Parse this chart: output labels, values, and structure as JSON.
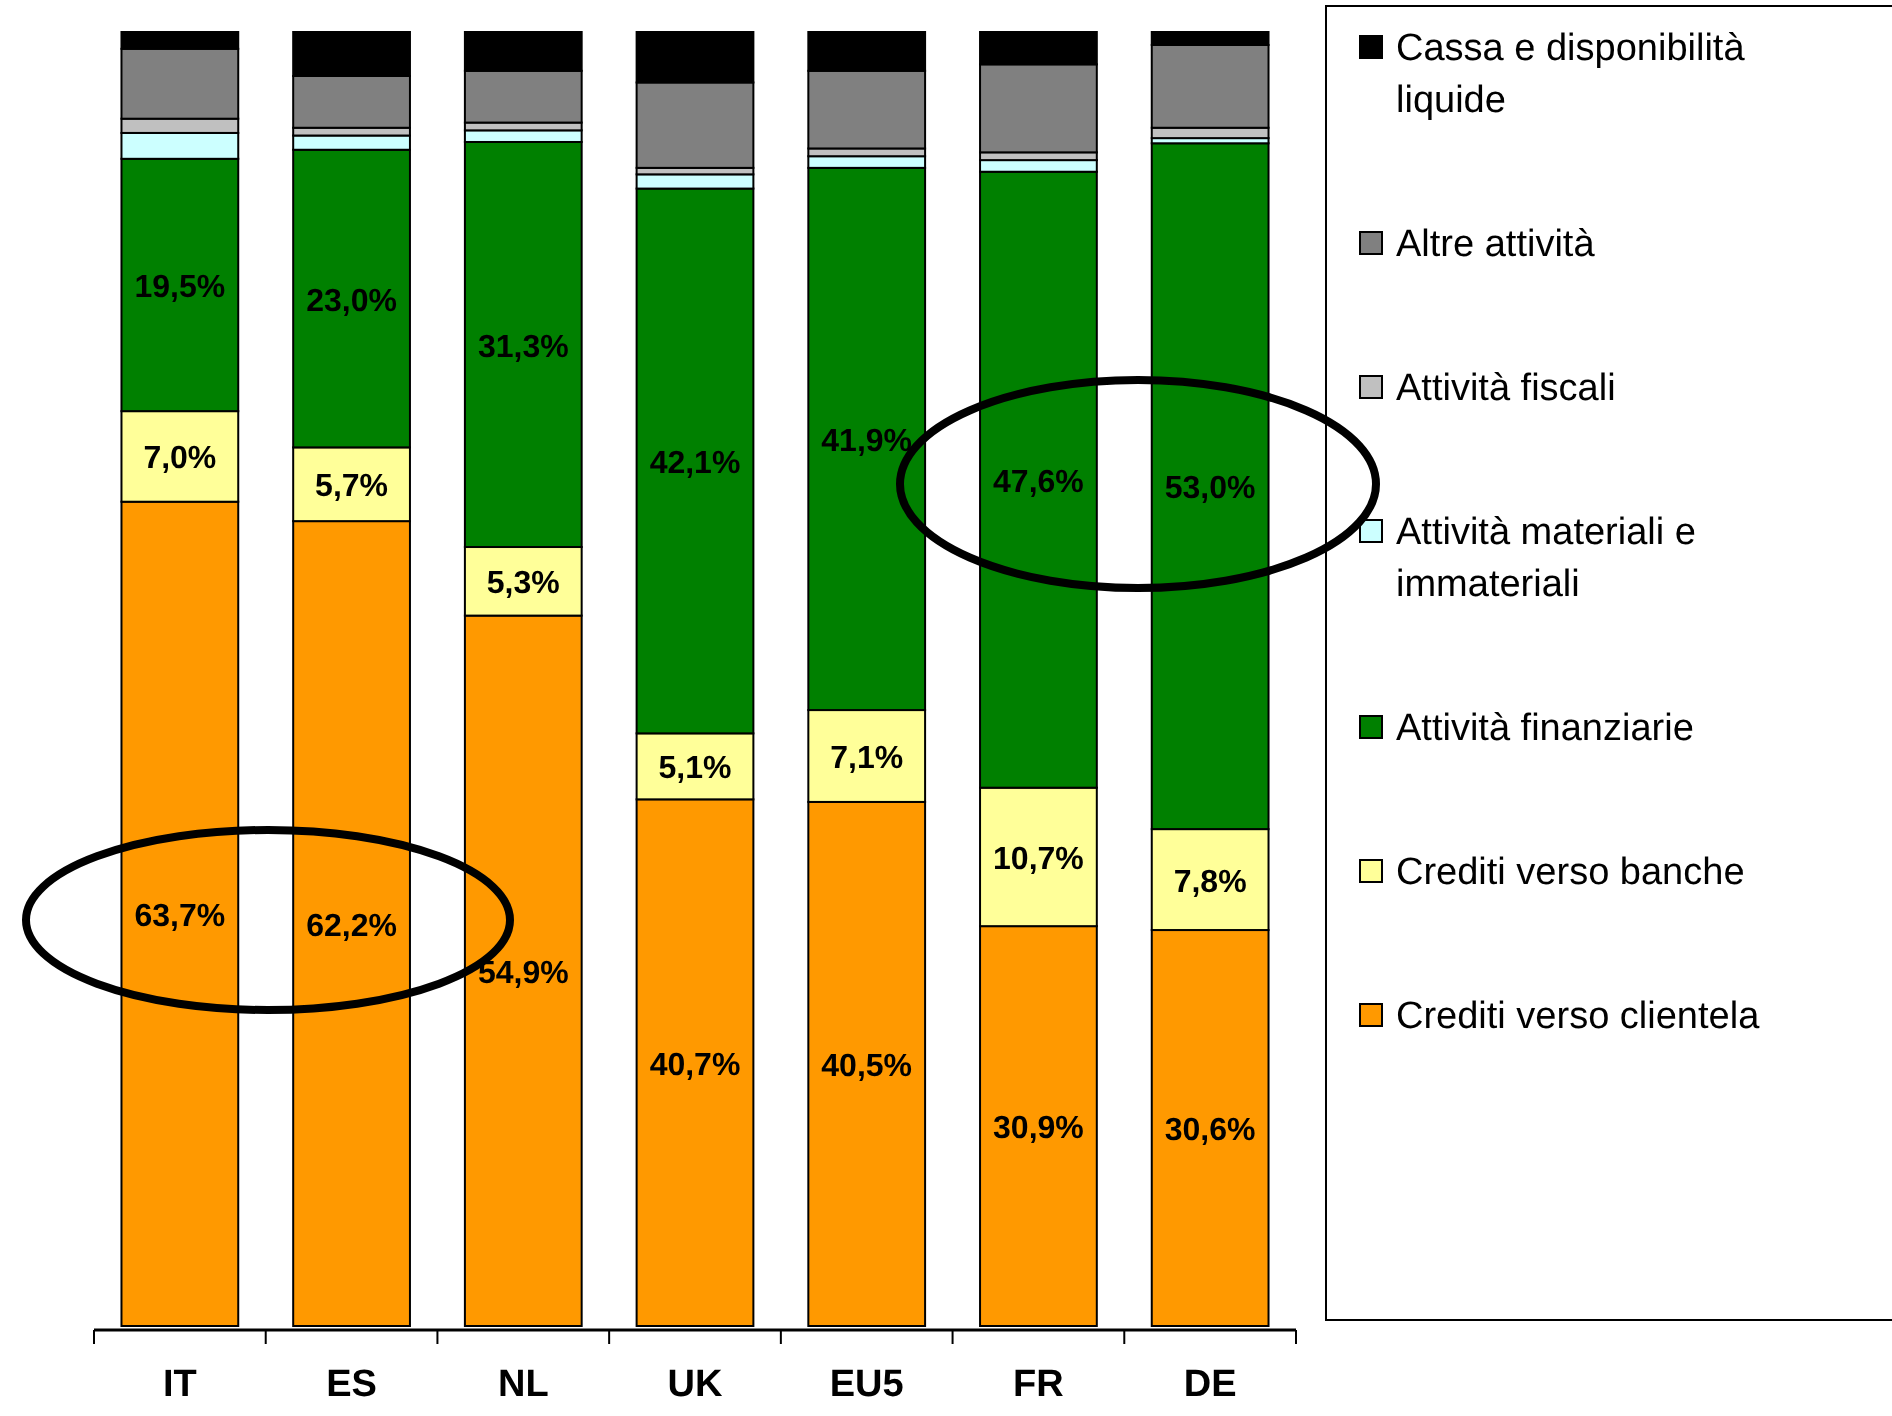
{
  "chart_data": {
    "type": "bar",
    "stacked": true,
    "legend": "right",
    "tick_labels": "x",
    "categories": [
      "IT",
      "ES",
      "NL",
      "UK",
      "EU5",
      "FR",
      "DE"
    ],
    "series": [
      {
        "name": "Crediti verso clientela",
        "color": "#ff9900",
        "values": [
          63.7,
          62.2,
          54.9,
          40.7,
          40.5,
          30.9,
          30.6
        ],
        "value_labels": [
          "63,7%",
          "62,2%",
          "54,9%",
          "40,7%",
          "40,5%",
          "30,9%",
          "30,6%"
        ]
      },
      {
        "name": "Crediti verso banche",
        "color": "#ffff99",
        "values": [
          7.0,
          5.7,
          5.3,
          5.1,
          7.1,
          10.7,
          7.8
        ],
        "value_labels": [
          "7,0%",
          "5,7%",
          "5,3%",
          "5,1%",
          "7,1%",
          "10,7%",
          "7,8%"
        ]
      },
      {
        "name": "Attività finanziarie",
        "color": "#008000",
        "values": [
          19.5,
          23.0,
          31.3,
          42.1,
          41.9,
          47.6,
          53.0
        ],
        "value_labels": [
          "19,5%",
          "23,0%",
          "31,3%",
          "42,1%",
          "41,9%",
          "47,6%",
          "53,0%"
        ]
      },
      {
        "name": "Attività materiali e immateriali",
        "color": "#ccffff",
        "values": [
          2.0,
          1.1,
          0.9,
          1.1,
          0.9,
          0.9,
          0.4
        ]
      },
      {
        "name": "Attività fiscali",
        "color": "#c0c0c0",
        "values": [
          1.1,
          0.6,
          0.6,
          0.5,
          0.6,
          0.6,
          0.8
        ]
      },
      {
        "name": "Altre attività",
        "color": "#808080",
        "values": [
          5.4,
          4.0,
          4.0,
          6.6,
          6.0,
          6.8,
          6.4
        ]
      },
      {
        "name": "Cassa e disponibilità liquide",
        "color": "#000000",
        "values": [
          1.3,
          3.4,
          3.0,
          3.9,
          3.0,
          2.5,
          1.0
        ]
      }
    ]
  }
}
